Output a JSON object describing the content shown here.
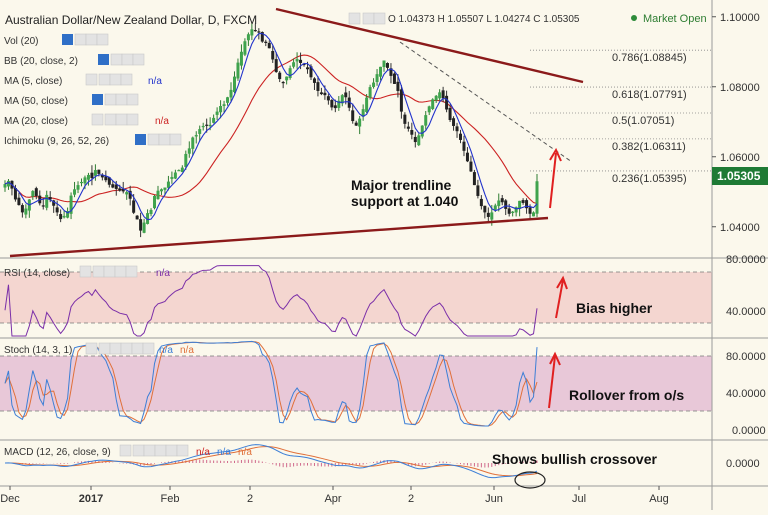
{
  "header": {
    "symbol_title": "Australian Dollar/New Zealand Dollar, D, FXCM",
    "ohlc": "O 1.04373  H 1.05507  L 1.04274  C 1.05305",
    "market_status": "Market Open"
  },
  "indicators": {
    "vol": "Vol (20)",
    "bb": "BB (20, close, 2)",
    "ma5": "MA (5, close)",
    "ma5_value": "n/a",
    "ma50": "MA (50, close)",
    "ma20": "MA (20, close)",
    "ma20_value": "n/a",
    "ichimoku": "Ichimoku (9, 26, 52, 26)",
    "rsi": "RSI (14, close)",
    "rsi_value": "n/a",
    "stoch": "Stoch (14, 3, 1)",
    "stoch_value1": "n/a",
    "stoch_value2": "n/a",
    "macd": "MACD (12, 26, close, 9)",
    "macd_value1": "n/a",
    "macd_value2": "n/a",
    "macd_value3": "n/a"
  },
  "annotations": {
    "trendline_line1": "Major trendline",
    "trendline_line2": "support at 1.040",
    "rsi_note": "Bias higher",
    "stoch_note": "Rollover from o/s",
    "macd_note": "Shows bullish crossover"
  },
  "colors": {
    "candle_up": "#2e7d32",
    "candle_down": "#333333",
    "ma5": "#2233cc",
    "ma20": "#cc2222",
    "trendline": "#8b1a1a",
    "rsi_line": "#7b2fa8",
    "stoch_k": "#3d7fd6",
    "stoch_d": "#e0703a",
    "macd_line": "#3d7fd6",
    "signal_line": "#e0703a",
    "arrow": "#e02020",
    "price_badge": "#1e7a34"
  },
  "chart_data": {
    "type": "candlestick",
    "title": "Australian Dollar/New Zealand Dollar, D, FXCM",
    "ohlc_latest": {
      "open": 1.04373,
      "high": 1.05507,
      "low": 1.04274,
      "close": 1.05305
    },
    "last_price_label": "1.05305",
    "price_axis": {
      "ticks": [
        "1.10000",
        "1.08000",
        "1.06000",
        "1.04000"
      ],
      "ylim": [
        1.0325,
        1.1025
      ]
    },
    "x_labels": [
      "Dec",
      "2017",
      "Feb",
      "2",
      "Apr",
      "2",
      "Jun",
      "Jul",
      "Aug"
    ],
    "fibonacci_levels": [
      {
        "label": "0.786(1.08845)",
        "value": 1.08845
      },
      {
        "label": "0.618(1.07791)",
        "value": 1.07791
      },
      {
        "label": "0.5(1.07051)",
        "value": 1.07051
      },
      {
        "label": "0.382(1.06311)",
        "value": 1.06311
      },
      {
        "label": "0.236(1.05395)",
        "value": 1.05395
      }
    ],
    "trendline_support_level": 1.04,
    "closes": [
      1.0522,
      1.0531,
      1.0509,
      1.0478,
      1.0462,
      1.0441,
      1.0452,
      1.0478,
      1.0502,
      1.0488,
      1.0467,
      1.0459,
      1.0491,
      1.0478,
      1.046,
      1.0441,
      1.0422,
      1.0431,
      1.0445,
      1.0489,
      1.0507,
      1.0519,
      1.0528,
      1.0541,
      1.0548,
      1.0539,
      1.0562,
      1.0551,
      1.0541,
      1.0533,
      1.052,
      1.0512,
      1.0508,
      1.0503,
      1.0501,
      1.0499,
      1.048,
      1.044,
      1.0421,
      1.0389,
      1.0412,
      1.0439,
      1.0448,
      1.0488,
      1.0503,
      1.0507,
      1.0512,
      1.0529,
      1.0542,
      1.0555,
      1.0562,
      1.0569,
      1.0608,
      1.0624,
      1.0655,
      1.0662,
      1.0679,
      1.0688,
      1.0689,
      1.0691,
      1.0711,
      1.0729,
      1.0745,
      1.075,
      1.077,
      1.0791,
      1.0829,
      1.0869,
      1.09,
      1.093,
      1.095,
      1.0964,
      1.0961,
      1.0955,
      1.0929,
      1.0925,
      1.091,
      1.0878,
      1.0842,
      1.0822,
      1.0812,
      1.0829,
      1.0853,
      1.087,
      1.0879,
      1.0868,
      1.0862,
      1.085,
      1.0827,
      1.0811,
      1.0788,
      1.0779,
      1.0776,
      1.0761,
      1.0741,
      1.0739,
      1.076,
      1.0776,
      1.077,
      1.074,
      1.0702,
      1.0689,
      1.0709,
      1.0736,
      1.0769,
      1.0799,
      1.0812,
      1.0836,
      1.0857,
      1.0875,
      1.0854,
      1.0831,
      1.0808,
      1.0788,
      1.0729,
      1.0694,
      1.068,
      1.0663,
      1.0642,
      1.0661,
      1.0689,
      1.0719,
      1.0744,
      1.0764,
      1.0774,
      1.0784,
      1.0767,
      1.0735,
      1.0705,
      1.0688,
      1.0673,
      1.0648,
      1.0617,
      1.0587,
      1.0558,
      1.0519,
      1.0488,
      1.0459,
      1.0441,
      1.0428,
      1.0441,
      1.0461,
      1.0475,
      1.047,
      1.0451,
      1.0437,
      1.0443,
      1.0456,
      1.0474,
      1.0468,
      1.0453,
      1.0437,
      1.0441,
      1.053
    ]
  }
}
